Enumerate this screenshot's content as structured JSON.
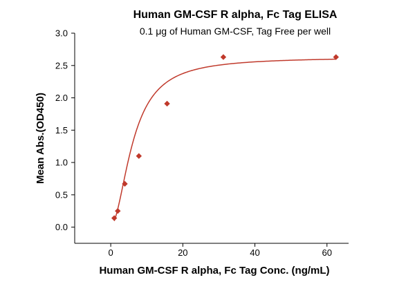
{
  "chart_data": {
    "type": "scatter",
    "title": "Human GM-CSF R alpha, Fc Tag ELISA",
    "subtitle": "0.1 μg of Human GM-CSF, Tag Free per well",
    "xlabel": "Human GM-CSF R alpha, Fc Tag Conc. (ng/mL)",
    "ylabel": "Mean Abs.(OD450)",
    "xlim": [
      -10,
      66
    ],
    "ylim": [
      -0.25,
      3.0
    ],
    "x_ticks": [
      0,
      20,
      40,
      60
    ],
    "y_ticks": [
      0.0,
      0.5,
      1.0,
      1.5,
      2.0,
      2.5,
      3.0
    ],
    "y_tick_labels": [
      "0.0",
      "0.5",
      "1.0",
      "1.5",
      "2.0",
      "2.5",
      "3.0"
    ],
    "x_tick_labels": [
      "0",
      "20",
      "40",
      "60"
    ],
    "grid": false,
    "series": [
      {
        "points": [
          {
            "x": 0.98,
            "y": 0.14
          },
          {
            "x": 1.95,
            "y": 0.25
          },
          {
            "x": 3.91,
            "y": 0.67
          },
          {
            "x": 7.81,
            "y": 1.1
          },
          {
            "x": 15.63,
            "y": 1.91
          },
          {
            "x": 31.25,
            "y": 2.63
          },
          {
            "x": 62.5,
            "y": 2.63
          }
        ],
        "color": "#c0392b",
        "fit_curve": true
      }
    ]
  }
}
